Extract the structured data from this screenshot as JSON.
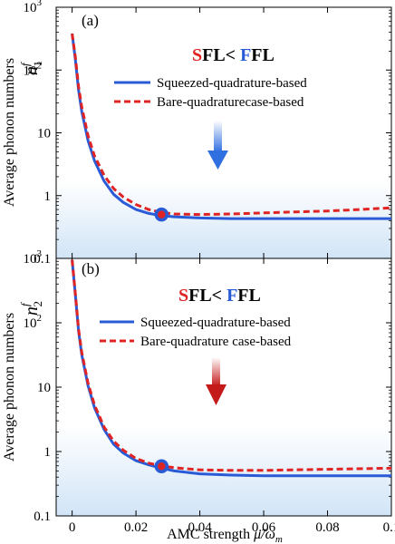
{
  "colors": {
    "squeezed": "#2a5bd7",
    "bare": "#e02424",
    "background_fill": "#cfe3f6",
    "arrow_a": "#2f6fe0",
    "arrow_b": "#c41a1a"
  },
  "chart_data": [
    {
      "type": "line",
      "panel_label": "(a)",
      "title_parts": [
        {
          "text": "S",
          "color": "#e02424"
        },
        {
          "text": "FL< ",
          "color": "#000000"
        },
        {
          "text": "F",
          "color": "#2a5bd7"
        },
        {
          "text": "FL",
          "color": "#000000"
        }
      ],
      "ylabel": "Average phonon numbers",
      "ysymbol": "n",
      "ysymbol_sup": "f",
      "ysymbol_sub": "1",
      "yscale": "log",
      "ylim": [
        0.1,
        1000
      ],
      "xlim": [
        -0.005,
        0.1
      ],
      "yticks": [
        {
          "v": 0.1,
          "label": "0.1"
        },
        {
          "v": 1,
          "label": "1"
        },
        {
          "v": 10,
          "label": "10"
        },
        {
          "v": 100,
          "label": "10",
          "sup": "2"
        },
        {
          "v": 1000,
          "label": "10",
          "sup": "3"
        }
      ],
      "xticks": [],
      "legend": [
        "Squeezed-quadrature-based",
        "Bare-quadraturecase-based"
      ],
      "series": [
        {
          "name": "Squeezed-quadrature-based",
          "style": "solid",
          "x": [
            0,
            0.001,
            0.002,
            0.003,
            0.005,
            0.007,
            0.01,
            0.013,
            0.016,
            0.02,
            0.024,
            0.028,
            0.032,
            0.04,
            0.05,
            0.06,
            0.07,
            0.08,
            0.09,
            0.1
          ],
          "y": [
            380,
            150,
            48,
            22,
            7.5,
            3.6,
            1.7,
            1.05,
            0.78,
            0.6,
            0.52,
            0.48,
            0.46,
            0.44,
            0.43,
            0.43,
            0.43,
            0.43,
            0.43,
            0.43
          ]
        },
        {
          "name": "Bare-quadraturecase-based",
          "style": "dashed",
          "x": [
            0,
            0.001,
            0.002,
            0.003,
            0.005,
            0.007,
            0.01,
            0.013,
            0.016,
            0.02,
            0.024,
            0.028,
            0.032,
            0.04,
            0.05,
            0.06,
            0.07,
            0.08,
            0.09,
            0.1
          ],
          "y": [
            380,
            165,
            55,
            26,
            9,
            4.3,
            2.1,
            1.3,
            0.95,
            0.72,
            0.6,
            0.54,
            0.51,
            0.5,
            0.51,
            0.53,
            0.55,
            0.57,
            0.6,
            0.64
          ]
        }
      ],
      "marker": {
        "x": 0.028,
        "y": 0.5
      },
      "arrow": "down-blue"
    },
    {
      "type": "line",
      "panel_label": "(b)",
      "title_parts": [
        {
          "text": "S",
          "color": "#e02424"
        },
        {
          "text": "FL< ",
          "color": "#000000"
        },
        {
          "text": "F",
          "color": "#2a5bd7"
        },
        {
          "text": "FL",
          "color": "#000000"
        }
      ],
      "ylabel": "Average phonon numbers",
      "ysymbol": "n",
      "ysymbol_sup": "f",
      "ysymbol_sub": "2",
      "yscale": "log",
      "ylim": [
        0.1,
        1000
      ],
      "xlim": [
        -0.005,
        0.1
      ],
      "yticks": [
        {
          "v": 0.1,
          "label": "0.1"
        },
        {
          "v": 1,
          "label": "1"
        },
        {
          "v": 10,
          "label": "10"
        },
        {
          "v": 100,
          "label": "10",
          "sup": "2"
        },
        {
          "v": 1000,
          "label": "10",
          "sup": "3"
        }
      ],
      "xticks": [
        {
          "v": 0,
          "label": "0"
        },
        {
          "v": 0.02,
          "label": "0.02"
        },
        {
          "v": 0.04,
          "label": "0.04"
        },
        {
          "v": 0.06,
          "label": "0.06"
        },
        {
          "v": 0.08,
          "label": "0.08"
        },
        {
          "v": 0.1,
          "label": "0.1"
        }
      ],
      "xlabel_text": "AMC strength ",
      "xlabel_symbol": "μ̃/ω",
      "xlabel_sub": "m",
      "legend": [
        "Squeezed-quadrature-based",
        "Bare-quadrature case-based"
      ],
      "series": [
        {
          "name": "Squeezed-quadrature-based",
          "style": "solid",
          "x": [
            0,
            0.001,
            0.002,
            0.003,
            0.005,
            0.007,
            0.01,
            0.013,
            0.016,
            0.02,
            0.024,
            0.028,
            0.032,
            0.04,
            0.05,
            0.06,
            0.07,
            0.08,
            0.09,
            0.1
          ],
          "y": [
            950,
            280,
            75,
            32,
            10.5,
            4.8,
            2.2,
            1.3,
            0.95,
            0.72,
            0.62,
            0.55,
            0.5,
            0.45,
            0.43,
            0.42,
            0.42,
            0.42,
            0.42,
            0.42
          ]
        },
        {
          "name": "Bare-quadrature case-based",
          "style": "dashed",
          "x": [
            0,
            0.001,
            0.002,
            0.003,
            0.005,
            0.007,
            0.01,
            0.013,
            0.016,
            0.02,
            0.024,
            0.028,
            0.032,
            0.04,
            0.05,
            0.06,
            0.07,
            0.08,
            0.09,
            0.1
          ],
          "y": [
            950,
            290,
            80,
            35,
            11.5,
            5.3,
            2.4,
            1.45,
            1.05,
            0.78,
            0.66,
            0.6,
            0.56,
            0.52,
            0.51,
            0.51,
            0.52,
            0.53,
            0.54,
            0.55
          ]
        }
      ],
      "marker": {
        "x": 0.028,
        "y": 0.59
      },
      "arrow": "down-red"
    }
  ]
}
